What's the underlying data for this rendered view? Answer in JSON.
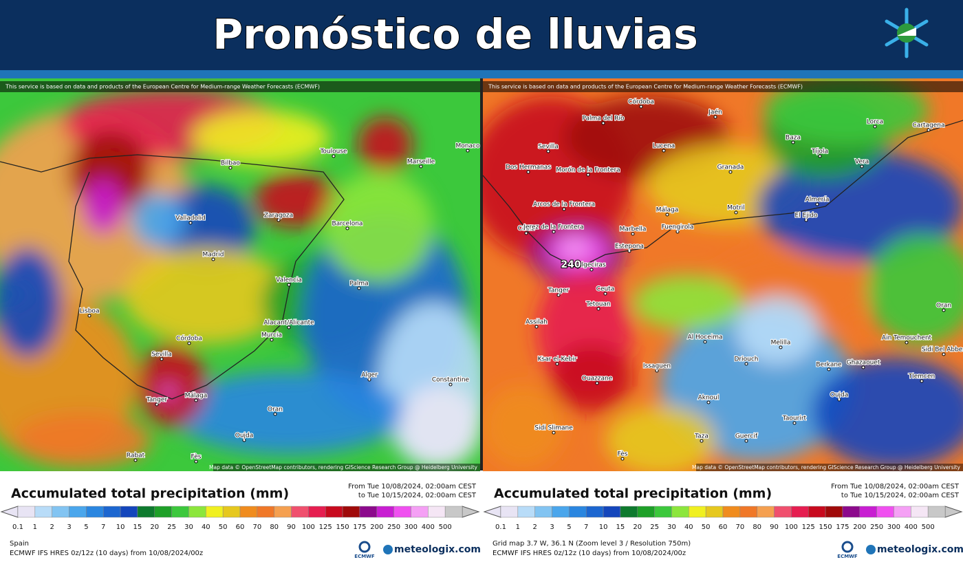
{
  "header": {
    "title": "Pronóstico de lluvias"
  },
  "precip_colors": [
    "#e8e4f4",
    "#b8dcf8",
    "#82c4f2",
    "#4aa6ec",
    "#2a86e0",
    "#1c66d0",
    "#1446bc",
    "#0e7a2e",
    "#1ea028",
    "#3cc83c",
    "#8ce63c",
    "#f0f020",
    "#e6c81e",
    "#f08c1e",
    "#f07828",
    "#f5a050",
    "#f0506e",
    "#e61e50",
    "#c80a1e",
    "#a00a0a",
    "#8c0a8c",
    "#c81ed2",
    "#f050f0",
    "#f5a0f5",
    "#f5e6f5",
    "#c8c8c8"
  ],
  "panels": [
    {
      "attribution": "This service is based on data and products of the European Centre for Medium-range Weather Forecasts (ECMWF)",
      "map_credit": "Map data © OpenStreetMap contributors, rendering GIScience Research Group @ Heidelberg University",
      "places": [
        "Bilbao",
        "Toulouse",
        "Marseille",
        "Monaco",
        "Valladolid",
        "Zaragoza",
        "Barcelona",
        "Madrid",
        "Valencia",
        "Palma",
        "Lisboa",
        "Alacant/Alicante",
        "Murcia",
        "Córdoba",
        "Sevilla",
        "Málaga",
        "Alger",
        "Constantine",
        "Oran",
        "Tanger",
        "Rabat",
        "Fès",
        "Oujda"
      ],
      "legend": {
        "title": "Accumulated total precipitation (mm)",
        "from": "From Tue 10/08/2024, 02:00am CEST",
        "to": "to Tue 10/15/2024, 02:00am CEST",
        "levels": [
          0.1,
          1,
          2,
          3,
          5,
          7,
          10,
          15,
          20,
          25,
          30,
          40,
          50,
          60,
          70,
          80,
          90,
          100,
          125,
          150,
          175,
          200,
          250,
          300,
          400,
          500
        ]
      },
      "region": "Spain",
      "model": "ECMWF IFS HRES 0z/12z (10 days) from 10/08/2024/00z",
      "ecmwf": "ECMWF",
      "brand": "meteologix.com"
    },
    {
      "attribution": "This service is based on data and products of the European Centre for Medium-range Weather Forecasts (ECMWF)",
      "map_credit": "Map data © OpenStreetMap contributors, rendering GIScience Research Group @ Heidelberg University",
      "peak": "240",
      "places": [
        "Córdoba",
        "Jaén",
        "Palma del Río",
        "Sevilla",
        "Lucena",
        "Baza",
        "Lorca",
        "Cartagena",
        "Tíjola",
        "Granada",
        "Vera",
        "Dos Hermanas",
        "Morón de la Frontera",
        "Almería",
        "Arcos de la Frontera",
        "Málaga",
        "Motril",
        "El Ejido",
        "Cádiz",
        "Jerez de la Frontera",
        "Marbella",
        "Fuengirola",
        "Estepona",
        "Algeciras",
        "Oran",
        "Tanger",
        "Ceuta",
        "Tetouan",
        "Assilah",
        "Al Hoceima",
        "Ain Temouchent",
        "Sidi Bel Abbes",
        "Melilla",
        "Ksar el-Kebir",
        "Driouch",
        "Berkane",
        "Ghazaouet",
        "Issaguen",
        "Tlemcen",
        "Ouazzane",
        "Oujda",
        "Aknoul",
        "Taourirt",
        "Taza",
        "Guercif",
        "Sidi Slimane",
        "Fès"
      ],
      "legend": {
        "title": "Accumulated total precipitation (mm)",
        "from": "From Tue 10/08/2024, 02:00am CEST",
        "to": "to Tue 10/15/2024, 02:00am CEST",
        "levels": [
          0.1,
          1,
          2,
          3,
          5,
          7,
          10,
          15,
          20,
          25,
          30,
          40,
          50,
          60,
          70,
          80,
          90,
          100,
          125,
          150,
          175,
          200,
          250,
          300,
          400,
          500
        ]
      },
      "region": "Grid map 3.7 W, 36.1 N (Zoom level 3 / Resolution 750m)",
      "model": "ECMWF IFS HRES 0z/12z (10 days) from 10/08/2024/00z",
      "ecmwf": "ECMWF",
      "brand": "meteologix.com"
    }
  ]
}
